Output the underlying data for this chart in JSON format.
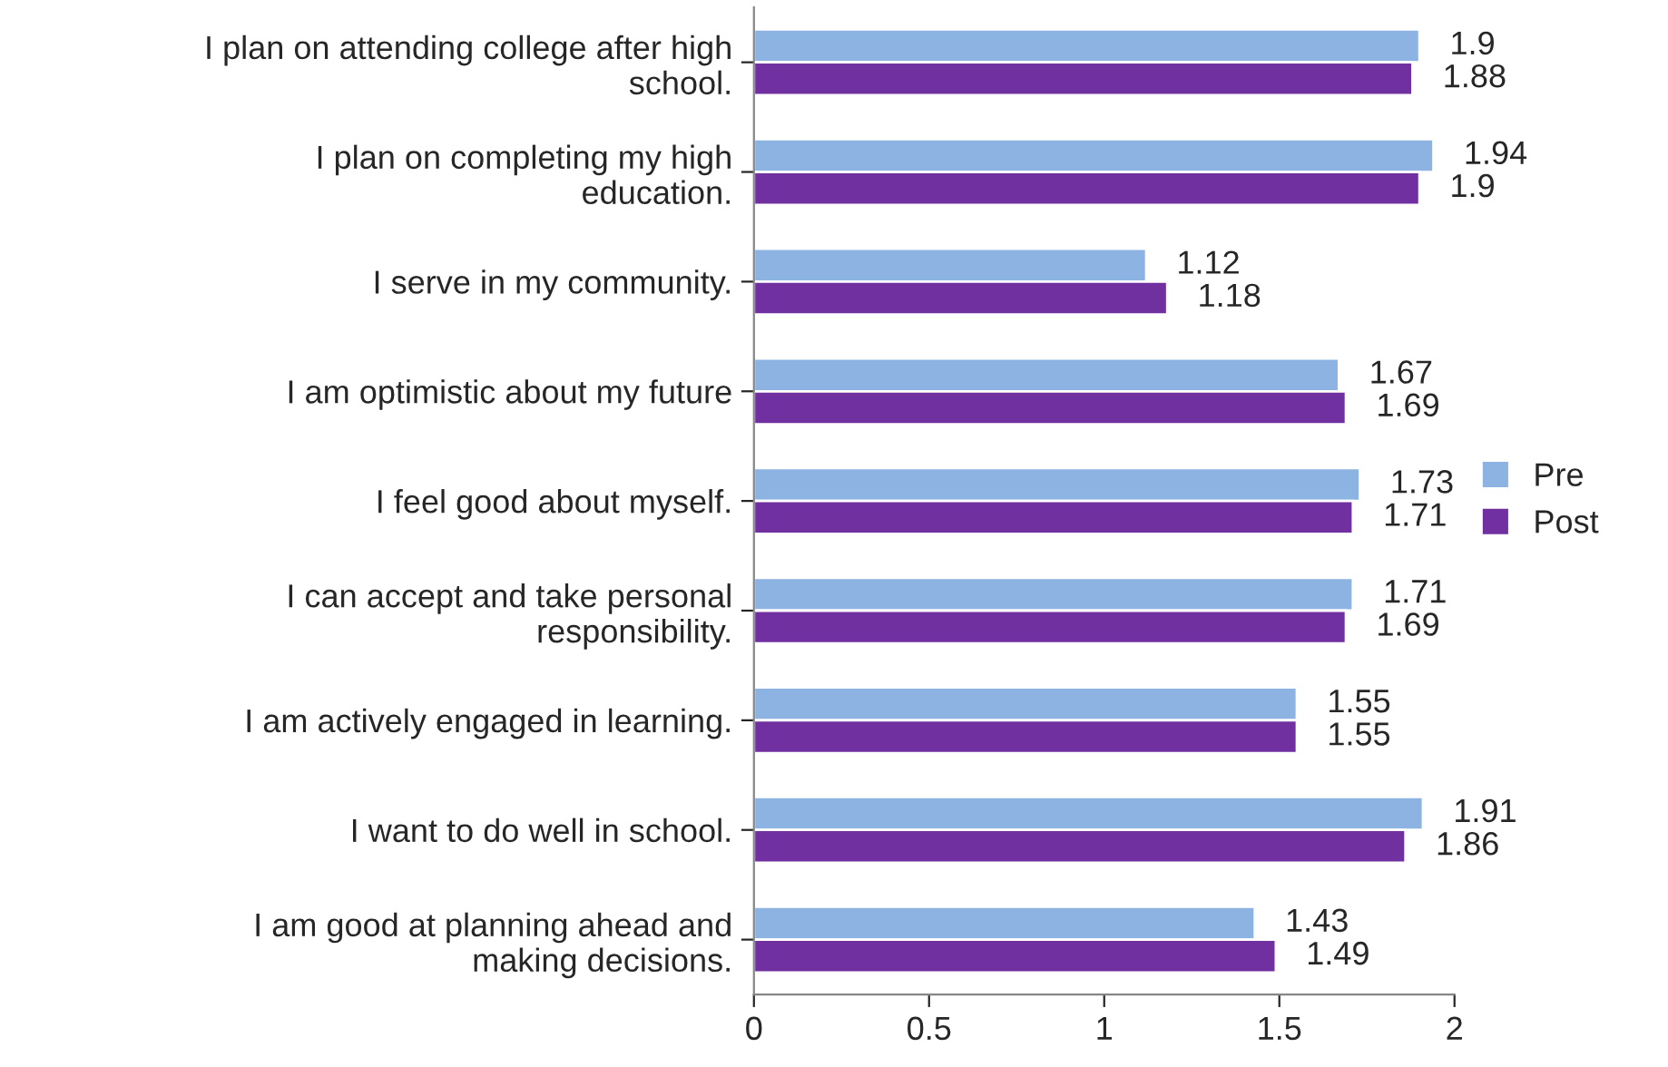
{
  "chart_data": {
    "type": "bar",
    "orientation": "horizontal",
    "categories": [
      "I plan on attending college after high\nschool.",
      "I plan on completing my high\neducation.",
      "I serve in my community.",
      "I am optimistic about my future",
      "I feel good about myself.",
      "I can accept and take personal\nresponsibility.",
      "I am actively engaged in learning.",
      "I want to do well in school.",
      "I am good at planning ahead and\nmaking decisions."
    ],
    "series": [
      {
        "name": "Pre",
        "color": "#8db3e2",
        "values": [
          1.9,
          1.94,
          1.12,
          1.67,
          1.73,
          1.71,
          1.55,
          1.91,
          1.43
        ]
      },
      {
        "name": "Post",
        "color": "#7030a0",
        "values": [
          1.88,
          1.9,
          1.18,
          1.69,
          1.71,
          1.69,
          1.55,
          1.86,
          1.49
        ]
      }
    ],
    "xlim": [
      0,
      2
    ],
    "xticks": [
      0,
      0.5,
      1,
      1.5,
      2
    ],
    "grid": false,
    "legend": "right",
    "data_labels": true
  }
}
